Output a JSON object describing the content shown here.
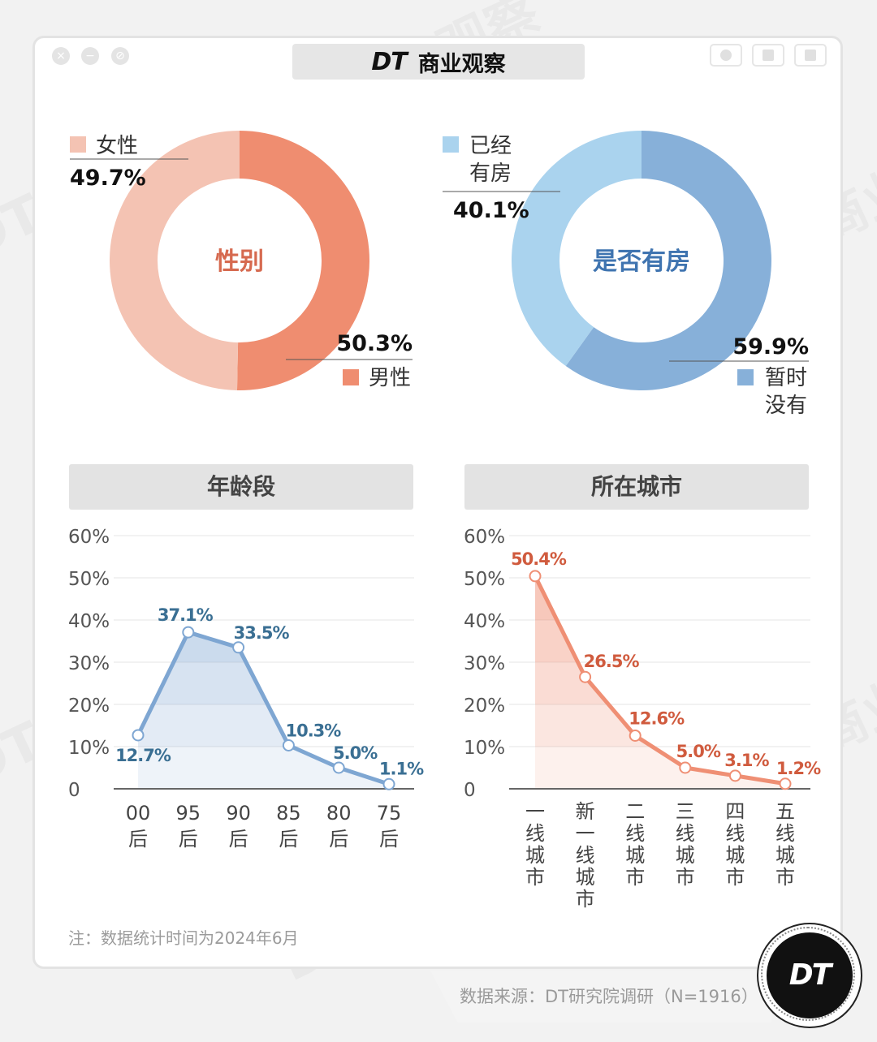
{
  "header": {
    "logo": "DT",
    "title": "商业观察"
  },
  "watermark": "DT 商业观察",
  "note": "注：数据统计时间为2024年6月",
  "source": "数据来源：DT研究院调研（N=1916）",
  "badge": "DT",
  "colors": {
    "female": "#f4c3b3",
    "male": "#ef8d70",
    "gender_title": "#d66a50",
    "has_house": "#aad3ee",
    "no_house": "#87b0d9",
    "house_title": "#3f74b0",
    "age_line": "#7ea6d2",
    "age_label": "#3a6f93",
    "city_line": "#ef8f74",
    "city_label": "#d05b3e"
  },
  "chart_data": [
    {
      "type": "pie",
      "title": "性别",
      "series": [
        {
          "name": "女性",
          "value": 49.7,
          "label": "49.7%"
        },
        {
          "name": "男性",
          "value": 50.3,
          "label": "50.3%"
        }
      ]
    },
    {
      "type": "pie",
      "title": "是否有房",
      "series": [
        {
          "name": "已经有房",
          "legend_lines": [
            "已经",
            "有房"
          ],
          "value": 40.1,
          "label": "40.1%"
        },
        {
          "name": "暂时没有",
          "legend_lines": [
            "暂时",
            "没有"
          ],
          "value": 59.9,
          "label": "59.9%"
        }
      ]
    },
    {
      "type": "area",
      "title": "年龄段",
      "categories": [
        "00后",
        "95后",
        "90后",
        "85后",
        "80后",
        "75后"
      ],
      "category_lines": [
        [
          "00",
          "后"
        ],
        [
          "95",
          "后"
        ],
        [
          "90",
          "后"
        ],
        [
          "85",
          "后"
        ],
        [
          "80",
          "后"
        ],
        [
          "75",
          "后"
        ]
      ],
      "values": [
        12.7,
        37.1,
        33.5,
        10.3,
        5.0,
        1.1
      ],
      "labels": [
        "12.7%",
        "37.1%",
        "33.5%",
        "10.3%",
        "5.0%",
        "1.1%"
      ],
      "yticks": [
        "0",
        "10%",
        "20%",
        "30%",
        "40%",
        "50%",
        "60%"
      ],
      "ylim": [
        0,
        60
      ],
      "grid": true
    },
    {
      "type": "area",
      "title": "所在城市",
      "categories": [
        "一线城市",
        "新一线城市",
        "二线城市",
        "三线城市",
        "四线城市",
        "五线城市"
      ],
      "category_lines": [
        [
          "一",
          "线",
          "城",
          "市"
        ],
        [
          "新",
          "一",
          "线",
          "城",
          "市"
        ],
        [
          "二",
          "线",
          "城",
          "市"
        ],
        [
          "三",
          "线",
          "城",
          "市"
        ],
        [
          "四",
          "线",
          "城",
          "市"
        ],
        [
          "五",
          "线",
          "城",
          "市"
        ]
      ],
      "values": [
        50.4,
        26.5,
        12.6,
        5.0,
        3.1,
        1.2
      ],
      "labels": [
        "50.4%",
        "26.5%",
        "12.6%",
        "5.0%",
        "3.1%",
        "1.2%"
      ],
      "yticks": [
        "0",
        "10%",
        "20%",
        "30%",
        "40%",
        "50%",
        "60%"
      ],
      "ylim": [
        0,
        60
      ],
      "grid": true
    }
  ]
}
